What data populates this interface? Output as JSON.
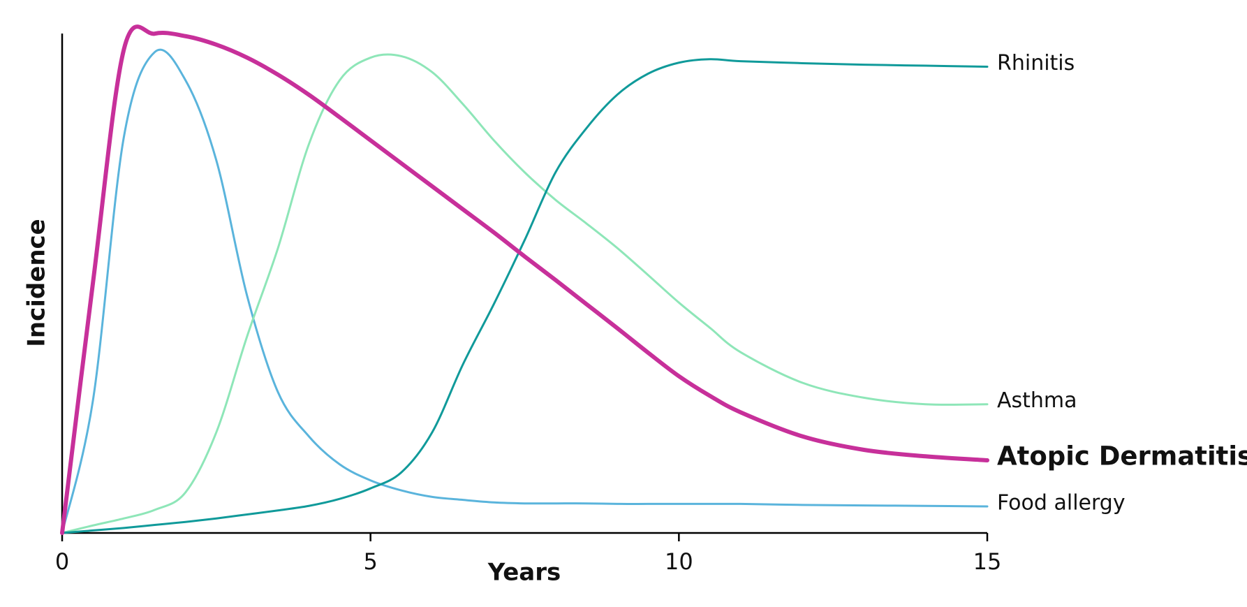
{
  "chart_data": {
    "type": "line",
    "xlabel": "Years",
    "ylabel": "Incidence",
    "x": [
      0,
      0.5,
      1,
      1.5,
      2,
      2.5,
      3,
      3.5,
      4,
      4.5,
      5,
      5.5,
      6,
      6.5,
      7,
      7.5,
      8,
      8.5,
      9,
      9.5,
      10,
      10.5,
      11,
      12,
      13,
      14,
      15
    ],
    "xlim": [
      0,
      15
    ],
    "xticks": [
      0,
      5,
      10,
      15
    ],
    "ylim": [
      0,
      100
    ],
    "series": [
      {
        "name": "Food allergy",
        "color": "#5ab4dc",
        "width": 3,
        "values": [
          0,
          26.5,
          79,
          96,
          90.4,
          74.4,
          47.3,
          28.1,
          19.3,
          13.7,
          10.5,
          8.5,
          7.2,
          6.6,
          6.1,
          5.9,
          5.9,
          5.9,
          5.8,
          5.8,
          5.8,
          5.8,
          5.8,
          5.6,
          5.5,
          5.4,
          5.3
        ]
      },
      {
        "name": "Asthma",
        "color": "#8ee6b8",
        "width": 3,
        "values": [
          0,
          1.5,
          2.9,
          4.6,
          8.1,
          20.1,
          39.3,
          56.9,
          77.6,
          90.4,
          94.9,
          95.2,
          92,
          85.6,
          78.4,
          72,
          66.5,
          61.8,
          56.9,
          51.5,
          46,
          41,
          36.1,
          30,
          27,
          25.7,
          25.7
        ]
      },
      {
        "name": "Rhinitis",
        "color": "#109a9a",
        "width": 3,
        "values": [
          0,
          0.5,
          1,
          1.6,
          2.2,
          2.9,
          3.7,
          4.5,
          5.4,
          6.8,
          8.9,
          12.1,
          20.1,
          33.7,
          45.7,
          58.5,
          72,
          80.8,
          87.5,
          91.7,
          93.9,
          94.6,
          94.2,
          93.8,
          93.5,
          93.3,
          93.1
        ]
      },
      {
        "name": "Atopic Dermatitis",
        "color": "#c7309a",
        "width": 6,
        "values": [
          0,
          50,
          96.5,
          99.7,
          99.2,
          97.5,
          94.9,
          91.5,
          87.5,
          83,
          78.4,
          73.8,
          69.2,
          64.6,
          60,
          55.2,
          50.5,
          45.7,
          40.9,
          36,
          31.3,
          27.4,
          24.1,
          19.3,
          16.6,
          15.3,
          14.5
        ]
      }
    ]
  }
}
